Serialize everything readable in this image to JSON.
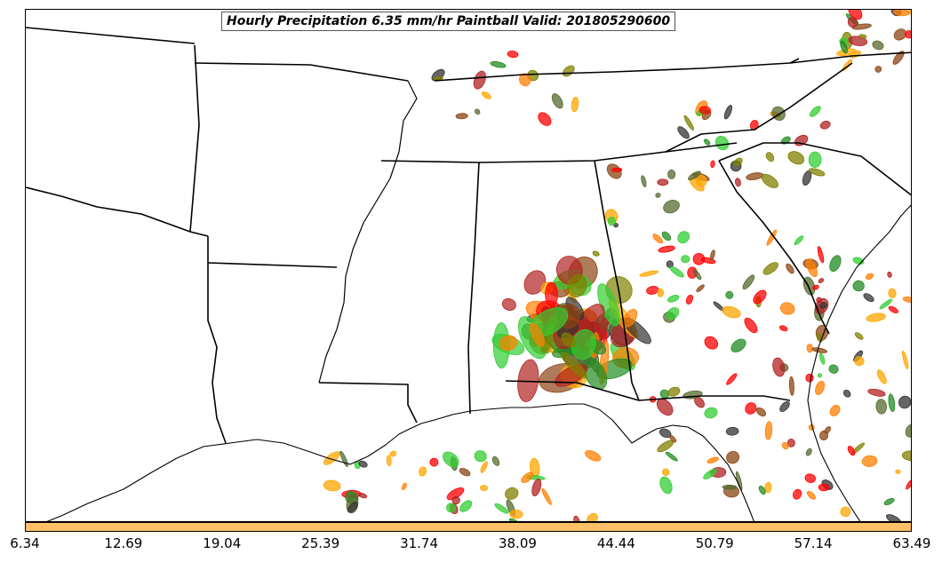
{
  "title": "Hourly Precipitation 6.35 mm/hr Paintball Valid: 201805290600",
  "colorbar": {
    "color": "#ffc067",
    "ticks": [
      "6.34",
      "12.69",
      "19.04",
      "25.39",
      "31.74",
      "38.09",
      "44.44",
      "50.79",
      "57.14",
      "63.49"
    ]
  },
  "member_colors": [
    "#b22222",
    "#ff0000",
    "#ff7f00",
    "#ffa500",
    "#808000",
    "#556b2f",
    "#228b22",
    "#32cd32",
    "#8b4513",
    "#333333"
  ]
}
